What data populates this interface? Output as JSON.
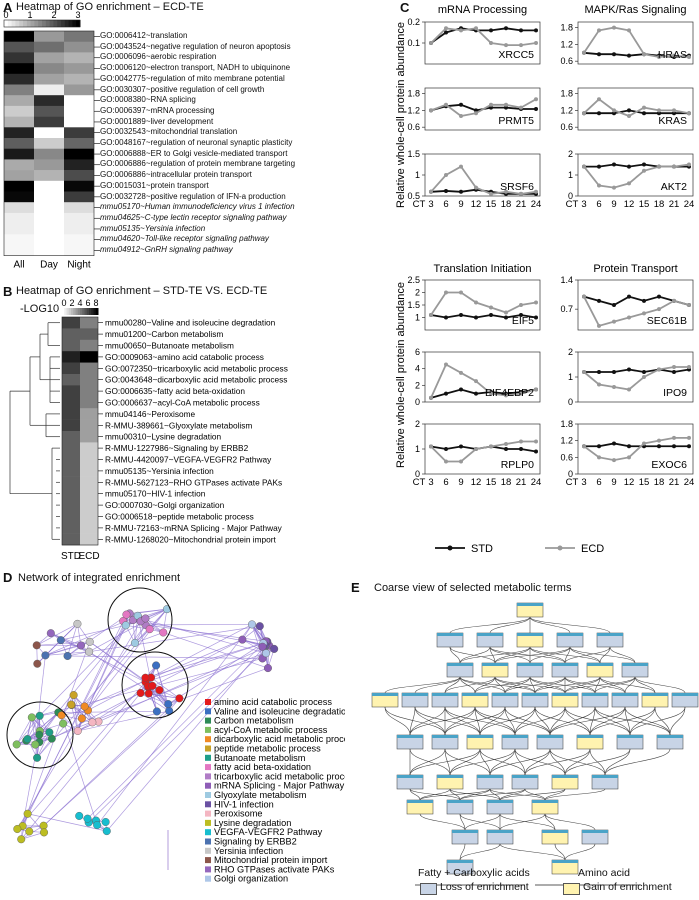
{
  "panel_a": {
    "letter": "A",
    "title": "Heatmap of GO enrichment – ECD-TE",
    "scale_ticks": [
      "0",
      "1",
      "2",
      "3"
    ],
    "columns": [
      "All",
      "Day",
      "Night"
    ],
    "terms": [
      "GO:0006412~translation",
      "GO:0043524~negative regulation of neuron apoptosis",
      "GO:0006096~aerobic respiration",
      "GO:0006120~electron transport, NADH to ubiquinone",
      "GO:0042775~regulation of mito membrane potential",
      "GO:0030307~positive regulation of cell growth",
      "GO:0008380~RNA splicing",
      "GO:0006397~mRNA processing",
      "GO:0001889~liver development",
      "GO:0032543~mitochondrial translation",
      "GO:0048167~regulation of neuronal synaptic plasticity",
      "GO:0006888~ER to Golgi vesicle-mediated transport",
      "GO:0006886~regulation of protein membrane targeting",
      "GO:0006886~intracellular protein transport",
      "GO:0015031~protein transport",
      "GO:0032728~positive regulation of IFN-a production",
      "mmu05170~Human immunodeficiency virus 1 infection",
      "mmu04625~C-type lectin receptor signaling pathway",
      "mmu05135~Yersinia infection",
      "mmu04620~Toll-like receptor signaling pathway",
      "mmu04912~GnRH signaling pathway"
    ],
    "values": [
      [
        3.0,
        1.2,
        1.6
      ],
      [
        2.0,
        1.7,
        1.3
      ],
      [
        2.4,
        1.1,
        0.9
      ],
      [
        3.0,
        1.4,
        1.2
      ],
      [
        2.5,
        1.1,
        0.9
      ],
      [
        1.5,
        0.2,
        1.2
      ],
      [
        1.0,
        2.5,
        0.0
      ],
      [
        0.6,
        2.0,
        0.0
      ],
      [
        0.9,
        2.3,
        0.0
      ],
      [
        2.6,
        0.0,
        2.3
      ],
      [
        1.9,
        0.6,
        1.8
      ],
      [
        2.7,
        1.4,
        3.0
      ],
      [
        1.0,
        1.2,
        2.6
      ],
      [
        1.1,
        0.9,
        2.1
      ],
      [
        3.0,
        0.0,
        2.9
      ],
      [
        2.9,
        0.0,
        2.3
      ],
      [
        0.4,
        0.0,
        0.4
      ],
      [
        0.2,
        0.0,
        0.2
      ],
      [
        0.2,
        0.0,
        0.2
      ],
      [
        0.1,
        0.0,
        0.1
      ],
      [
        0.1,
        0.0,
        0.1
      ]
    ]
  },
  "panel_b": {
    "letter": "B",
    "title": "Heatmap of GO enrichment – STD-TE VS. ECD-TE",
    "scale_label": "-LOG10",
    "scale_ticks": [
      "0",
      "2",
      "4",
      "6",
      "8"
    ],
    "columns": [
      "STD",
      "ECD"
    ],
    "terms": [
      "mmu00280~Valine and isoleucine degradation",
      "mmu01200~Carbon metabolism",
      "mmu00650~Butanoate metabolism",
      "GO:0009063~amino acid catabolic process",
      "GO:0072350~tricarboxylic acid metabolic process",
      "GO:0043648~dicarboxylic acid metabolic process",
      "GO:0006635~fatty acid beta-oxidation",
      "GO:0006637~acyl-CoA metabolic process",
      "mmu04146~Peroxisome",
      "R-MMU-389661~Glyoxylate metabolism",
      "mmu00310~Lysine degradation",
      "R-MMU-1227986~Signaling by ERBB2",
      "R-MMU-4420097~VEGFA-VEGFR2 Pathway",
      "mmu05135~Yersinia infection",
      "R-MMU-5627123~RHO GTPases activate PAKs",
      "mmu05170~HIV-1 infection",
      "GO:0007030~Golgi organization",
      "GO:0006518~peptide metabolic process",
      "R-MMU-72163~mRNA Splicing - Major Pathway",
      "R-MMU-1268020~Mitochondrial protein import"
    ],
    "values": [
      [
        6,
        4
      ],
      [
        5,
        5
      ],
      [
        5,
        4
      ],
      [
        7,
        8
      ],
      [
        6,
        4
      ],
      [
        5,
        4
      ],
      [
        6,
        4
      ],
      [
        6,
        4
      ],
      [
        6,
        3
      ],
      [
        6,
        3
      ],
      [
        5,
        3
      ],
      [
        5,
        1.6
      ],
      [
        5,
        1.6
      ],
      [
        5,
        1.6
      ],
      [
        5,
        1.6
      ],
      [
        5,
        1.6
      ],
      [
        5,
        1.6
      ],
      [
        5,
        1.6
      ],
      [
        5,
        1.6
      ],
      [
        5,
        1.6
      ]
    ]
  },
  "panel_c": {
    "letter": "C",
    "ylabel_top": "Relative whole-cell protein abundance",
    "ylabel_bottom": "Relative whole-cell protein abundance",
    "x_ticks": [
      "CT",
      "3",
      "6",
      "9",
      "12",
      "15",
      "18",
      "21",
      "24"
    ],
    "legend": [
      "STD",
      "ECD"
    ],
    "colors": {
      "STD": "#111111",
      "ECD": "#999999"
    },
    "group_titles": [
      "mRNA Processing",
      "MAPK/Ras Signaling",
      "Translation Initiation",
      "Protein Transport"
    ]
  },
  "chart_data": [
    {
      "type": "line",
      "title": "mRNA Processing",
      "gene": "XRCC5",
      "x": [
        3,
        6,
        9,
        12,
        15,
        18,
        21,
        24
      ],
      "ylim": [
        0.0,
        0.2
      ],
      "yticks": [
        "0.1",
        "0.2"
      ],
      "series": [
        {
          "name": "STD",
          "values": [
            0.1,
            0.15,
            0.17,
            0.16,
            0.16,
            0.17,
            0.16,
            0.16
          ]
        },
        {
          "name": "ECD",
          "values": [
            0.1,
            0.17,
            0.16,
            0.17,
            0.1,
            0.09,
            0.09,
            0.1
          ]
        }
      ]
    },
    {
      "type": "line",
      "gene": "PRMT5",
      "x": [
        3,
        6,
        9,
        12,
        15,
        18,
        21,
        24
      ],
      "ylim": [
        0.5,
        2.0
      ],
      "yticks": [
        "0.6",
        "1.2",
        "1.8"
      ],
      "series": [
        {
          "name": "STD",
          "values": [
            1.2,
            1.35,
            1.4,
            1.2,
            1.3,
            1.3,
            1.25,
            1.25
          ]
        },
        {
          "name": "ECD",
          "values": [
            1.2,
            1.4,
            1.0,
            1.1,
            1.4,
            1.4,
            1.3,
            1.6
          ]
        }
      ]
    },
    {
      "type": "line",
      "gene": "SRSF6",
      "x": [
        3,
        6,
        9,
        12,
        15,
        18,
        21,
        24
      ],
      "ylim": [
        0.5,
        1.5
      ],
      "yticks": [
        "0.5",
        "1",
        "1.5"
      ],
      "series": [
        {
          "name": "STD",
          "values": [
            0.6,
            0.62,
            0.6,
            0.65,
            0.6,
            0.55,
            0.55,
            0.55
          ]
        },
        {
          "name": "ECD",
          "values": [
            0.6,
            1.0,
            1.2,
            0.7,
            0.55,
            0.6,
            0.55,
            0.6
          ]
        }
      ]
    },
    {
      "type": "line",
      "title": "MAPK/Ras Signaling",
      "gene": "HRAS",
      "x": [
        3,
        6,
        9,
        12,
        15,
        18,
        21,
        24
      ],
      "ylim": [
        0.5,
        2.0
      ],
      "yticks": [
        "0.6",
        "1.2",
        "1.8"
      ],
      "series": [
        {
          "name": "STD",
          "values": [
            0.9,
            0.85,
            0.85,
            0.8,
            0.85,
            0.8,
            0.75,
            0.8
          ]
        },
        {
          "name": "ECD",
          "values": [
            0.9,
            1.7,
            1.8,
            1.7,
            0.85,
            0.75,
            0.8,
            0.75
          ]
        }
      ]
    },
    {
      "type": "line",
      "gene": "KRAS",
      "x": [
        3,
        6,
        9,
        12,
        15,
        18,
        21,
        24
      ],
      "ylim": [
        0.5,
        2.0
      ],
      "yticks": [
        "0.6",
        "1.2",
        "1.8"
      ],
      "series": [
        {
          "name": "STD",
          "values": [
            1.1,
            1.1,
            1.1,
            1.2,
            1.1,
            1.1,
            1.1,
            1.1
          ]
        },
        {
          "name": "ECD",
          "values": [
            1.1,
            1.6,
            1.2,
            1.0,
            1.3,
            1.2,
            1.2,
            1.1
          ]
        }
      ]
    },
    {
      "type": "line",
      "gene": "AKT2",
      "x": [
        3,
        6,
        9,
        12,
        15,
        18,
        21,
        24
      ],
      "ylim": [
        0.0,
        2.0
      ],
      "yticks": [
        "0",
        "1",
        "2"
      ],
      "series": [
        {
          "name": "STD",
          "values": [
            1.4,
            1.4,
            1.5,
            1.4,
            1.5,
            1.4,
            1.4,
            1.4
          ]
        },
        {
          "name": "ECD",
          "values": [
            1.4,
            0.5,
            0.4,
            0.6,
            1.2,
            1.4,
            1.4,
            1.5
          ]
        }
      ]
    },
    {
      "type": "line",
      "title": "Translation Initiation",
      "gene": "EIF5",
      "x": [
        3,
        6,
        9,
        12,
        15,
        18,
        21,
        24
      ],
      "ylim": [
        0.5,
        2.5
      ],
      "yticks": [
        "1",
        "1.5",
        "2",
        "2.5"
      ],
      "series": [
        {
          "name": "STD",
          "values": [
            1.1,
            1.0,
            1.1,
            1.0,
            1.1,
            1.0,
            1.1,
            1.0
          ]
        },
        {
          "name": "ECD",
          "values": [
            1.1,
            2.0,
            2.0,
            1.6,
            1.4,
            1.2,
            1.5,
            1.6
          ]
        }
      ]
    },
    {
      "type": "line",
      "gene": "EIF4EBP2",
      "x": [
        3,
        6,
        9,
        12,
        15,
        18,
        21,
        24
      ],
      "ylim": [
        0,
        6
      ],
      "yticks": [
        "0",
        "2",
        "4",
        "6"
      ],
      "series": [
        {
          "name": "STD",
          "values": [
            0.5,
            1.0,
            1.5,
            1.0,
            1.2,
            1.0,
            1.2,
            1.5
          ]
        },
        {
          "name": "ECD",
          "values": [
            0.5,
            4.5,
            3.5,
            2.5,
            1.0,
            0.8,
            1.0,
            1.5
          ]
        }
      ]
    },
    {
      "type": "line",
      "gene": "RPLP0",
      "x": [
        3,
        6,
        9,
        12,
        15,
        18,
        21,
        24
      ],
      "ylim": [
        0,
        2
      ],
      "yticks": [
        "0",
        "1",
        "2"
      ],
      "series": [
        {
          "name": "STD",
          "values": [
            1.1,
            1.0,
            1.1,
            1.0,
            1.1,
            1.0,
            1.0,
            0.9
          ]
        },
        {
          "name": "ECD",
          "values": [
            1.1,
            0.5,
            0.5,
            1.0,
            1.1,
            1.2,
            1.3,
            1.3
          ]
        }
      ]
    },
    {
      "type": "line",
      "title": "Protein Transport",
      "gene": "SEC61B",
      "x": [
        3,
        6,
        9,
        12,
        15,
        18,
        21,
        24
      ],
      "ylim": [
        0.2,
        1.4
      ],
      "yticks": [
        "0.7",
        "1.4"
      ],
      "series": [
        {
          "name": "STD",
          "values": [
            1.0,
            0.9,
            0.8,
            1.0,
            0.9,
            1.0,
            0.9,
            0.8
          ]
        },
        {
          "name": "ECD",
          "values": [
            1.0,
            0.3,
            0.4,
            0.5,
            0.6,
            0.7,
            0.9,
            0.8
          ]
        }
      ]
    },
    {
      "type": "line",
      "gene": "IPO9",
      "x": [
        3,
        6,
        9,
        12,
        15,
        18,
        21,
        24
      ],
      "ylim": [
        0,
        2
      ],
      "yticks": [
        "0",
        "1",
        "2"
      ],
      "series": [
        {
          "name": "STD",
          "values": [
            1.2,
            1.2,
            1.2,
            1.3,
            1.2,
            1.3,
            1.2,
            1.3
          ]
        },
        {
          "name": "ECD",
          "values": [
            1.2,
            0.7,
            0.6,
            0.5,
            1.0,
            1.3,
            1.4,
            1.4
          ]
        }
      ]
    },
    {
      "type": "line",
      "gene": "EXOC6",
      "x": [
        3,
        6,
        9,
        12,
        15,
        18,
        21,
        24
      ],
      "ylim": [
        0.0,
        1.8
      ],
      "yticks": [
        "0",
        "0.6",
        "1.2",
        "1.8"
      ],
      "series": [
        {
          "name": "STD",
          "values": [
            1.0,
            1.0,
            1.1,
            1.0,
            1.0,
            1.0,
            1.0,
            1.0
          ]
        },
        {
          "name": "ECD",
          "values": [
            1.0,
            0.6,
            0.5,
            0.6,
            1.1,
            1.2,
            1.3,
            1.3
          ]
        }
      ]
    }
  ],
  "panel_d": {
    "letter": "D",
    "title": "Network of integrated enrichment",
    "legend": [
      {
        "label": "amino acid catabolic process",
        "color": "#e31a1c"
      },
      {
        "label": "Valine and isoleucine degradation",
        "color": "#3b6fc2"
      },
      {
        "label": "Carbon metabolism",
        "color": "#2e8b57"
      },
      {
        "label": "acyl-CoA metabolic process",
        "color": "#7fbf5f"
      },
      {
        "label": "dicarboxylic acid metabolic process",
        "color": "#f08a24"
      },
      {
        "label": "peptide metabolic process",
        "color": "#c9a227"
      },
      {
        "label": "Butanoate metabolism",
        "color": "#1f9e89"
      },
      {
        "label": "fatty acid beta-oxidation",
        "color": "#e377c2"
      },
      {
        "label": "tricarboxylic acid metabolic process",
        "color": "#b07cc6"
      },
      {
        "label": "mRNA Splicing - Major Pathway",
        "color": "#8e5db7"
      },
      {
        "label": "Glyoxylate metabolism",
        "color": "#9ecae1"
      },
      {
        "label": "HIV-1 infection",
        "color": "#6a51a3"
      },
      {
        "label": "Peroxisome",
        "color": "#f4b6c2"
      },
      {
        "label": "Lysine degradation",
        "color": "#bcbd22"
      },
      {
        "label": "VEGFA-VEGFR2 Pathway",
        "color": "#17becf"
      },
      {
        "label": "Signaling by ERBB2",
        "color": "#4c72b0"
      },
      {
        "label": "Yersinia infection",
        "color": "#c7c7c7"
      },
      {
        "label": "Mitochondrial protein import",
        "color": "#8c564b"
      },
      {
        "label": "RHO GTPases activate PAKs",
        "color": "#9467bd"
      },
      {
        "label": "Golgi organization",
        "color": "#aec7e8"
      }
    ]
  },
  "panel_e": {
    "letter": "E",
    "title": "Coarse view of selected metabolic terms",
    "group_left": "Fatty + Carboxylic acids",
    "group_right": "Amino acid",
    "legend": [
      {
        "label": "Loss of enrichment",
        "color": "#c8d4e6"
      },
      {
        "label": "Gain of enrichment",
        "color": "#fff3b0"
      }
    ]
  }
}
